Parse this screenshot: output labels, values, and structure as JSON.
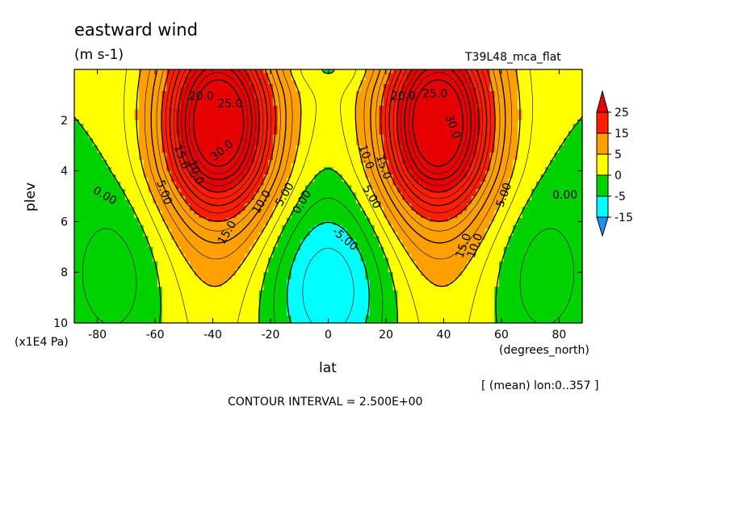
{
  "header": {
    "title": "eastward wind",
    "units": "(m s-1)",
    "run": "T39L48_mca_flat"
  },
  "footer": {
    "mean_note": "[ (mean) lon:0..357 ]",
    "contour_interval": "CONTOUR INTERVAL = 2.500E+00"
  },
  "chart_data": {
    "type": "heatmap",
    "title": "eastward wind",
    "units": "(m s-1)",
    "xlabel": "lat",
    "xunits": "(degrees_north)",
    "ylabel": "plev",
    "yunits": "(x1E4 Pa)",
    "xlim": [
      -88,
      88
    ],
    "ylim": [
      10,
      0
    ],
    "xticks": [
      "-80",
      "-60",
      "-40",
      "-20",
      "0",
      "20",
      "40",
      "60",
      "80"
    ],
    "yticks": [
      "2",
      "4",
      "6",
      "8",
      "10"
    ],
    "xtick_values": [
      -80,
      -60,
      -40,
      -20,
      0,
      20,
      40,
      60,
      80
    ],
    "ytick_values": [
      2,
      4,
      6,
      8,
      10
    ],
    "contour_interval": 2.5,
    "colorbar": {
      "labels": [
        "25",
        "15",
        "5",
        "0",
        "-5",
        "-15"
      ],
      "levels": [
        -15,
        -5,
        0,
        5,
        15,
        25
      ],
      "colors": [
        "#1e90ff",
        "#00ffff",
        "#00d200",
        "#ffff00",
        "#ffa000",
        "#ff1e00",
        "#e60000"
      ]
    },
    "jets": [
      {
        "lat": -38,
        "plev": 2.1,
        "peak": 32
      },
      {
        "lat": 38,
        "plev": 2.1,
        "peak": 32
      }
    ],
    "contour_labels": [
      "20.0",
      "25.0",
      "30.0",
      "15.0",
      "10.0",
      "5.00",
      "0.00",
      "-5.00"
    ]
  }
}
